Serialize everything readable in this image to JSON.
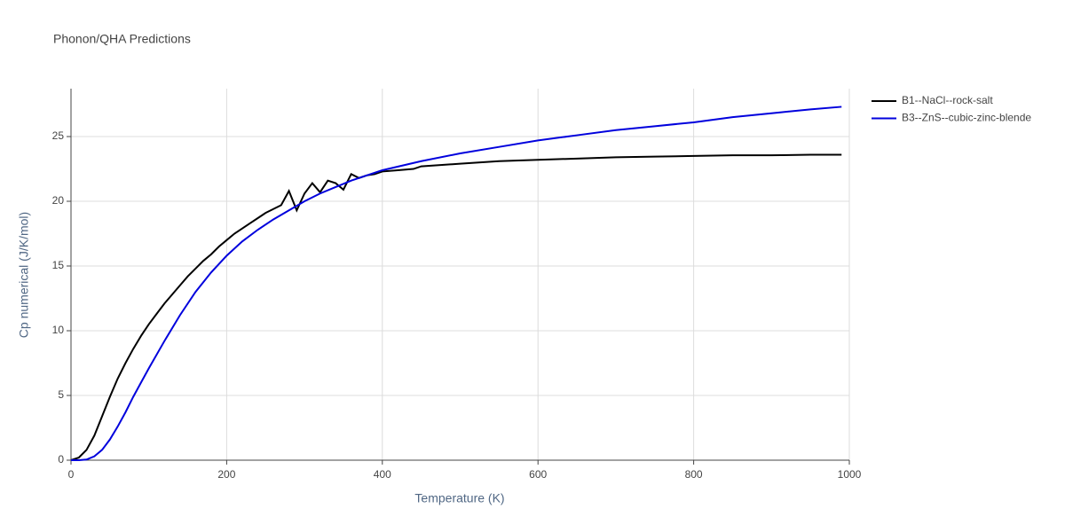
{
  "chart_data": {
    "type": "line",
    "title": "Phonon/QHA Predictions",
    "x_label": "Temperature (K)",
    "y_label": "Cp numerical (J/K/mol)",
    "xlim": [
      0,
      1000
    ],
    "ylim": [
      0,
      28.7
    ],
    "xticks": [
      0,
      200,
      400,
      600,
      800,
      1000
    ],
    "yticks": [
      0,
      5,
      10,
      15,
      20,
      25
    ],
    "grid": true,
    "legend": "outside-right",
    "series": [
      {
        "name": "B1--NaCl--rock-salt",
        "color": "#000000",
        "x": [
          0,
          10,
          20,
          30,
          40,
          50,
          60,
          70,
          80,
          90,
          100,
          110,
          120,
          130,
          140,
          150,
          160,
          170,
          180,
          190,
          200,
          210,
          220,
          230,
          240,
          250,
          260,
          270,
          280,
          290,
          300,
          310,
          320,
          330,
          340,
          350,
          360,
          370,
          380,
          390,
          400,
          420,
          440,
          450,
          500,
          550,
          600,
          650,
          700,
          750,
          800,
          850,
          900,
          950,
          990
        ],
        "values": [
          0,
          0.2,
          0.8,
          1.9,
          3.4,
          4.9,
          6.3,
          7.5,
          8.6,
          9.6,
          10.5,
          11.3,
          12.1,
          12.8,
          13.5,
          14.2,
          14.8,
          15.4,
          15.9,
          16.5,
          17.0,
          17.5,
          17.9,
          18.3,
          18.7,
          19.1,
          19.4,
          19.7,
          20.8,
          19.3,
          20.6,
          21.4,
          20.7,
          21.6,
          21.4,
          20.9,
          22.1,
          21.8,
          22.0,
          22.1,
          22.3,
          22.4,
          22.5,
          22.7,
          22.9,
          23.1,
          23.2,
          23.3,
          23.4,
          23.45,
          23.5,
          23.55,
          23.55,
          23.6,
          23.6
        ]
      },
      {
        "name": "B3--ZnS--cubic-zinc-blende",
        "color": "#0000dd",
        "x": [
          0,
          10,
          20,
          30,
          40,
          50,
          60,
          70,
          80,
          90,
          100,
          120,
          140,
          160,
          180,
          200,
          220,
          240,
          260,
          280,
          300,
          320,
          340,
          360,
          380,
          400,
          450,
          500,
          550,
          600,
          650,
          700,
          750,
          800,
          850,
          900,
          950,
          990
        ],
        "values": [
          0,
          0,
          0.05,
          0.3,
          0.8,
          1.6,
          2.6,
          3.7,
          4.9,
          6.0,
          7.1,
          9.2,
          11.2,
          13.0,
          14.5,
          15.8,
          16.9,
          17.8,
          18.6,
          19.3,
          20.0,
          20.6,
          21.1,
          21.6,
          22.0,
          22.4,
          23.1,
          23.7,
          24.2,
          24.7,
          25.1,
          25.5,
          25.8,
          26.1,
          26.5,
          26.8,
          27.1,
          27.3
        ]
      }
    ]
  }
}
